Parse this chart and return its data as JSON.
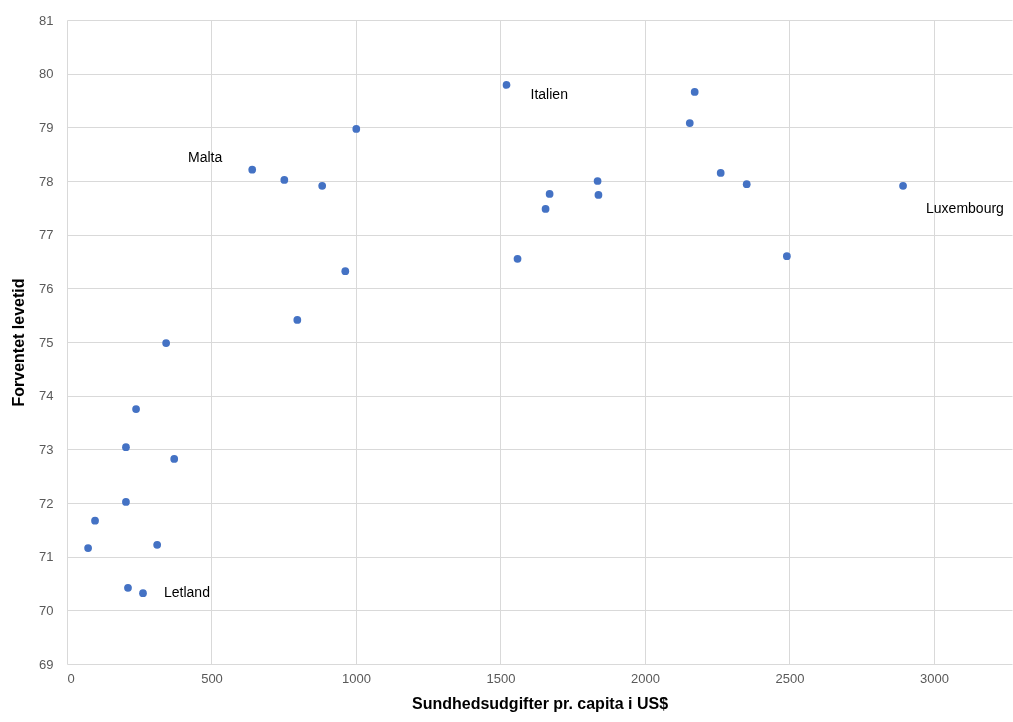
{
  "chart_data": {
    "type": "scatter",
    "xlabel": "Sundhedsudgifter pr. capita i US$",
    "ylabel": "Forventet levetid",
    "x": [
      73,
      97,
      204,
      204,
      239,
      211,
      263,
      312,
      371,
      343,
      641,
      752,
      797,
      883,
      963,
      1001,
      1521,
      1559,
      1656,
      1670,
      1836,
      1839,
      2155,
      2172,
      2262,
      2352,
      2491,
      2893
    ],
    "series": [
      {
        "color": "#4472c4",
        "values": [
          71.16,
          71.67,
          72.02,
          73.04,
          73.75,
          70.42,
          70.32,
          71.22,
          72.82,
          74.98,
          78.21,
          78.02,
          75.41,
          77.91,
          76.32,
          78.97,
          79.79,
          76.55,
          77.48,
          77.76,
          78.0,
          77.74,
          79.08,
          79.66,
          78.15,
          77.94,
          76.6,
          77.91
        ]
      }
    ],
    "xlim": [
      0,
      3270
    ],
    "xticks": [
      0,
      500,
      1000,
      1500,
      2000,
      2500,
      3000
    ],
    "ylim": [
      69,
      81
    ],
    "yticks": [
      69,
      70,
      71,
      72,
      73,
      74,
      75,
      76,
      77,
      78,
      79,
      80,
      81
    ],
    "grid": true,
    "marker": "circle",
    "annotations": [
      {
        "text": "Malta",
        "x": 641,
        "y": 78.21
      },
      {
        "text": "Italien",
        "x": 1521,
        "y": 79.79
      },
      {
        "text": "Luxembourg",
        "x": 2893,
        "y": 77.91
      },
      {
        "text": "Letland",
        "x": 263,
        "y": 70.32
      }
    ]
  }
}
